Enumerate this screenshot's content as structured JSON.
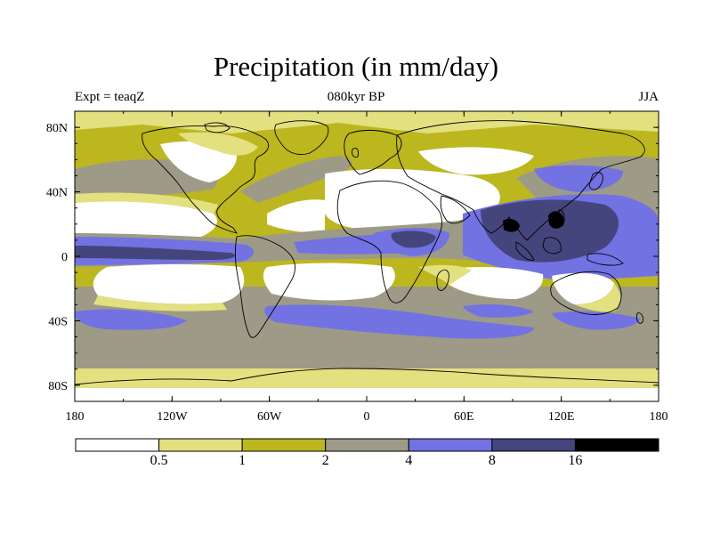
{
  "title": "Precipitation (in mm/day)",
  "subtitle_left": "Expt = teaqZ",
  "subtitle_center": "080kyr BP",
  "subtitle_right": "JJA",
  "axes": {
    "lon_labels": [
      "180",
      "120W",
      "60W",
      "0",
      "60E",
      "120E",
      "180"
    ],
    "lat_labels": [
      "80N",
      "40N",
      "0",
      "40S",
      "80S"
    ]
  },
  "colorbar": {
    "labels": [
      "0.5",
      "1",
      "2",
      "4",
      "8",
      "16"
    ],
    "colors": [
      "#ffffff",
      "#e2e07f",
      "#bcb71f",
      "#9d9a87",
      "#7272e2",
      "#45457e",
      "#000000"
    ]
  },
  "colors": {
    "dry": "#ffffff",
    "light": "#e2e07f",
    "moderate": "#bcb71f",
    "wet": "#9d9a87",
    "very_wet": "#7272e2",
    "heavy": "#45457e",
    "extreme": "#000000",
    "coast": "#000000"
  }
}
